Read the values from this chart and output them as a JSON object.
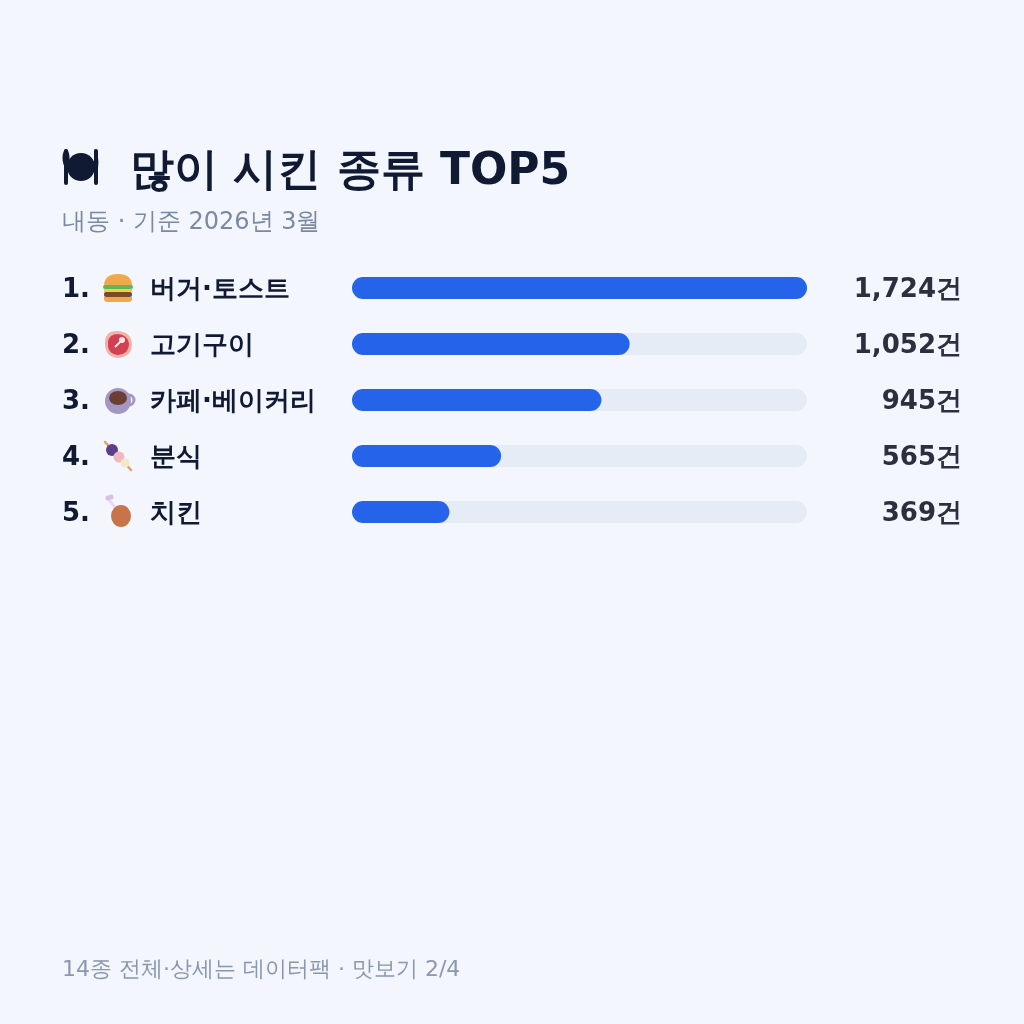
{
  "chart_data": {
    "type": "bar",
    "orientation": "horizontal",
    "title": "많이 시킨 종류 TOP5",
    "subtitle": "내동 · 기준 2026년 3월",
    "categories": [
      "1. 버거·토스트",
      "2. 고기구이",
      "3. 카페·베이커리",
      "4. 분식",
      "5. 치킨"
    ],
    "values": [
      1724,
      1052,
      945,
      565,
      369
    ],
    "color": "#2563eb",
    "value_labels": [
      "1,724건",
      "1,052건",
      "945건",
      "565건",
      "369건"
    ],
    "annotations": [
      "14종 전체·상세는 데이터팩 · 맛보기 2/4"
    ]
  }
}
